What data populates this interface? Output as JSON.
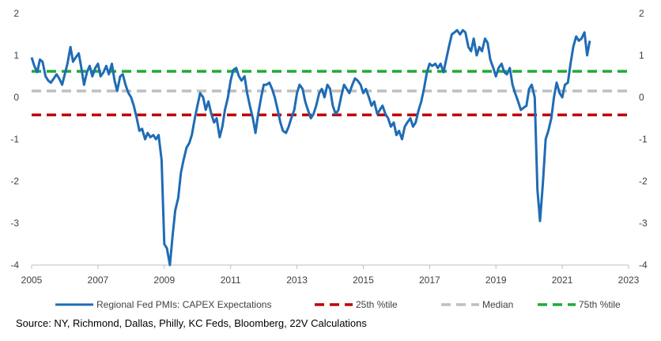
{
  "chart_data": {
    "type": "line",
    "title": "",
    "xlabel": "",
    "ylabel": "",
    "xlim": [
      2005,
      2023
    ],
    "ylim": [
      -4,
      2
    ],
    "x_ticks": [
      2005,
      2007,
      2009,
      2011,
      2013,
      2015,
      2017,
      2019,
      2021,
      2023
    ],
    "x_tick_labels": [
      "2005",
      "2007",
      "2009",
      "2011",
      "2013",
      "2015",
      "2017",
      "2019",
      "2021",
      "2023"
    ],
    "y_ticks": [
      2,
      1,
      0,
      -1,
      -2,
      -3,
      -4
    ],
    "y_tick_labels": [
      "2",
      "1",
      "0",
      "-1",
      "-2",
      "-3",
      "-4"
    ],
    "grid": false,
    "legend_position": "bottom",
    "series": [
      {
        "name": "Regional Fed PMIs: CAPEX Expectations",
        "color": "#1f6cb5",
        "style": "solid",
        "points": [
          [
            2005.0,
            0.95
          ],
          [
            2005.08,
            0.75
          ],
          [
            2005.17,
            0.6
          ],
          [
            2005.25,
            0.9
          ],
          [
            2005.33,
            0.85
          ],
          [
            2005.42,
            0.5
          ],
          [
            2005.5,
            0.4
          ],
          [
            2005.58,
            0.35
          ],
          [
            2005.67,
            0.45
          ],
          [
            2005.75,
            0.55
          ],
          [
            2005.83,
            0.45
          ],
          [
            2005.92,
            0.3
          ],
          [
            2006.0,
            0.55
          ],
          [
            2006.08,
            0.8
          ],
          [
            2006.17,
            1.2
          ],
          [
            2006.25,
            0.85
          ],
          [
            2006.33,
            0.95
          ],
          [
            2006.42,
            1.05
          ],
          [
            2006.5,
            0.7
          ],
          [
            2006.58,
            0.3
          ],
          [
            2006.67,
            0.6
          ],
          [
            2006.75,
            0.75
          ],
          [
            2006.83,
            0.5
          ],
          [
            2006.92,
            0.7
          ],
          [
            2007.0,
            0.8
          ],
          [
            2007.08,
            0.5
          ],
          [
            2007.17,
            0.6
          ],
          [
            2007.25,
            0.75
          ],
          [
            2007.33,
            0.55
          ],
          [
            2007.42,
            0.8
          ],
          [
            2007.5,
            0.4
          ],
          [
            2007.58,
            0.15
          ],
          [
            2007.67,
            0.5
          ],
          [
            2007.75,
            0.55
          ],
          [
            2007.83,
            0.3
          ],
          [
            2007.92,
            0.1
          ],
          [
            2008.0,
            0.0
          ],
          [
            2008.08,
            -0.2
          ],
          [
            2008.17,
            -0.5
          ],
          [
            2008.25,
            -0.8
          ],
          [
            2008.33,
            -0.75
          ],
          [
            2008.42,
            -1.0
          ],
          [
            2008.5,
            -0.85
          ],
          [
            2008.58,
            -0.95
          ],
          [
            2008.67,
            -0.9
          ],
          [
            2008.75,
            -1.0
          ],
          [
            2008.83,
            -0.9
          ],
          [
            2008.92,
            -1.5
          ],
          [
            2009.0,
            -3.5
          ],
          [
            2009.08,
            -3.6
          ],
          [
            2009.17,
            -4.0
          ],
          [
            2009.25,
            -3.3
          ],
          [
            2009.33,
            -2.7
          ],
          [
            2009.42,
            -2.4
          ],
          [
            2009.5,
            -1.8
          ],
          [
            2009.58,
            -1.5
          ],
          [
            2009.67,
            -1.2
          ],
          [
            2009.75,
            -1.1
          ],
          [
            2009.83,
            -0.9
          ],
          [
            2009.92,
            -0.5
          ],
          [
            2010.0,
            -0.2
          ],
          [
            2010.08,
            0.1
          ],
          [
            2010.17,
            0.0
          ],
          [
            2010.25,
            -0.3
          ],
          [
            2010.33,
            -0.1
          ],
          [
            2010.42,
            -0.4
          ],
          [
            2010.5,
            -0.6
          ],
          [
            2010.58,
            -0.5
          ],
          [
            2010.67,
            -0.95
          ],
          [
            2010.75,
            -0.7
          ],
          [
            2010.83,
            -0.3
          ],
          [
            2010.92,
            0.0
          ],
          [
            2011.0,
            0.4
          ],
          [
            2011.08,
            0.65
          ],
          [
            2011.17,
            0.7
          ],
          [
            2011.25,
            0.5
          ],
          [
            2011.33,
            0.4
          ],
          [
            2011.42,
            0.5
          ],
          [
            2011.5,
            0.1
          ],
          [
            2011.58,
            -0.2
          ],
          [
            2011.67,
            -0.5
          ],
          [
            2011.75,
            -0.85
          ],
          [
            2011.83,
            -0.4
          ],
          [
            2011.92,
            0.0
          ],
          [
            2012.0,
            0.3
          ],
          [
            2012.08,
            0.3
          ],
          [
            2012.17,
            0.35
          ],
          [
            2012.25,
            0.2
          ],
          [
            2012.33,
            0.0
          ],
          [
            2012.42,
            -0.3
          ],
          [
            2012.5,
            -0.6
          ],
          [
            2012.58,
            -0.8
          ],
          [
            2012.67,
            -0.85
          ],
          [
            2012.75,
            -0.7
          ],
          [
            2012.83,
            -0.5
          ],
          [
            2012.92,
            -0.3
          ],
          [
            2013.0,
            0.1
          ],
          [
            2013.08,
            0.3
          ],
          [
            2013.17,
            0.2
          ],
          [
            2013.25,
            -0.1
          ],
          [
            2013.33,
            -0.3
          ],
          [
            2013.42,
            -0.5
          ],
          [
            2013.5,
            -0.4
          ],
          [
            2013.58,
            -0.2
          ],
          [
            2013.67,
            0.1
          ],
          [
            2013.75,
            0.2
          ],
          [
            2013.83,
            0.0
          ],
          [
            2013.92,
            0.3
          ],
          [
            2014.0,
            0.2
          ],
          [
            2014.08,
            -0.2
          ],
          [
            2014.17,
            -0.4
          ],
          [
            2014.25,
            -0.3
          ],
          [
            2014.33,
            0.0
          ],
          [
            2014.42,
            0.3
          ],
          [
            2014.5,
            0.2
          ],
          [
            2014.58,
            0.1
          ],
          [
            2014.67,
            0.3
          ],
          [
            2014.75,
            0.45
          ],
          [
            2014.83,
            0.4
          ],
          [
            2014.92,
            0.3
          ],
          [
            2015.0,
            0.1
          ],
          [
            2015.08,
            0.2
          ],
          [
            2015.17,
            0.0
          ],
          [
            2015.25,
            -0.2
          ],
          [
            2015.33,
            -0.1
          ],
          [
            2015.42,
            -0.4
          ],
          [
            2015.5,
            -0.3
          ],
          [
            2015.58,
            -0.2
          ],
          [
            2015.67,
            -0.4
          ],
          [
            2015.75,
            -0.5
          ],
          [
            2015.83,
            -0.7
          ],
          [
            2015.92,
            -0.6
          ],
          [
            2016.0,
            -0.9
          ],
          [
            2016.08,
            -0.8
          ],
          [
            2016.17,
            -1.0
          ],
          [
            2016.25,
            -0.7
          ],
          [
            2016.33,
            -0.6
          ],
          [
            2016.42,
            -0.5
          ],
          [
            2016.5,
            -0.7
          ],
          [
            2016.58,
            -0.6
          ],
          [
            2016.67,
            -0.3
          ],
          [
            2016.75,
            -0.1
          ],
          [
            2016.83,
            0.2
          ],
          [
            2016.92,
            0.6
          ],
          [
            2017.0,
            0.8
          ],
          [
            2017.08,
            0.75
          ],
          [
            2017.17,
            0.8
          ],
          [
            2017.25,
            0.7
          ],
          [
            2017.33,
            0.8
          ],
          [
            2017.42,
            0.6
          ],
          [
            2017.5,
            0.9
          ],
          [
            2017.58,
            1.2
          ],
          [
            2017.67,
            1.5
          ],
          [
            2017.75,
            1.55
          ],
          [
            2017.83,
            1.6
          ],
          [
            2017.92,
            1.5
          ],
          [
            2018.0,
            1.6
          ],
          [
            2018.08,
            1.55
          ],
          [
            2018.17,
            1.2
          ],
          [
            2018.25,
            1.1
          ],
          [
            2018.33,
            1.4
          ],
          [
            2018.42,
            1.0
          ],
          [
            2018.5,
            1.2
          ],
          [
            2018.58,
            1.1
          ],
          [
            2018.67,
            1.4
          ],
          [
            2018.75,
            1.3
          ],
          [
            2018.83,
            0.9
          ],
          [
            2018.92,
            0.7
          ],
          [
            2019.0,
            0.5
          ],
          [
            2019.08,
            0.7
          ],
          [
            2019.17,
            0.8
          ],
          [
            2019.25,
            0.6
          ],
          [
            2019.33,
            0.55
          ],
          [
            2019.42,
            0.7
          ],
          [
            2019.5,
            0.3
          ],
          [
            2019.58,
            0.1
          ],
          [
            2019.67,
            -0.1
          ],
          [
            2019.75,
            -0.3
          ],
          [
            2019.83,
            -0.25
          ],
          [
            2019.92,
            -0.2
          ],
          [
            2020.0,
            0.2
          ],
          [
            2020.08,
            0.3
          ],
          [
            2020.17,
            0.0
          ],
          [
            2020.25,
            -2.2
          ],
          [
            2020.33,
            -2.95
          ],
          [
            2020.42,
            -2.0
          ],
          [
            2020.5,
            -1.0
          ],
          [
            2020.58,
            -0.8
          ],
          [
            2020.67,
            -0.5
          ],
          [
            2020.75,
            0.0
          ],
          [
            2020.83,
            0.35
          ],
          [
            2020.92,
            0.1
          ],
          [
            2021.0,
            0.0
          ],
          [
            2021.08,
            0.3
          ],
          [
            2021.17,
            0.35
          ],
          [
            2021.25,
            0.8
          ],
          [
            2021.33,
            1.2
          ],
          [
            2021.42,
            1.45
          ],
          [
            2021.5,
            1.35
          ],
          [
            2021.58,
            1.4
          ],
          [
            2021.67,
            1.55
          ],
          [
            2021.75,
            1.0
          ],
          [
            2021.83,
            1.35
          ]
        ]
      },
      {
        "name": "25th %tile",
        "color": "#c00000",
        "style": "dashed",
        "points": [
          [
            2005.0,
            -0.42
          ],
          [
            2023.0,
            -0.42
          ]
        ]
      },
      {
        "name": "Median",
        "color": "#bfbfbf",
        "style": "dashed",
        "points": [
          [
            2005.0,
            0.15
          ],
          [
            2023.0,
            0.15
          ]
        ]
      },
      {
        "name": "75th %tile",
        "color": "#1faa35",
        "style": "dashed",
        "points": [
          [
            2005.0,
            0.62
          ],
          [
            2023.0,
            0.62
          ]
        ]
      }
    ]
  },
  "source": "Source: NY, Richmond, Dallas, Philly, KC Feds, Bloomberg, 22V Calculations"
}
